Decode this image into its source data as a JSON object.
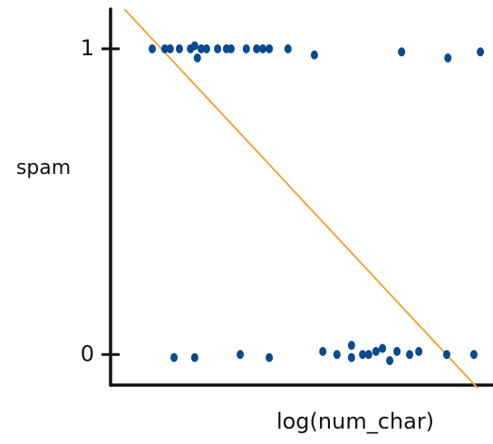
{
  "chart_data": {
    "type": "scatter",
    "x_label": "log(num_char)",
    "y_label": "spam",
    "xlim": [
      0,
      10
    ],
    "ylim": [
      -0.1,
      1.13
    ],
    "yticks": [
      0,
      1
    ],
    "point_color": "#0a4a8f",
    "line_color": "#f2a33a",
    "x": [
      1.09,
      1.42,
      1.56,
      1.8,
      2.09,
      2.2,
      2.27,
      2.37,
      2.51,
      2.8,
      3.03,
      3.15,
      3.55,
      3.82,
      3.98,
      4.15,
      4.64,
      5.33,
      7.61,
      8.82,
      9.67,
      1.66,
      2.2,
      3.39,
      4.15,
      5.55,
      5.92,
      6.3,
      6.3,
      6.59,
      6.75,
      6.94,
      7.11,
      7.3,
      7.49,
      7.82,
      8.06,
      8.79,
      9.5
    ],
    "y": [
      1,
      1,
      1,
      1,
      1,
      1.01,
      0.97,
      1,
      1,
      1,
      1,
      1,
      1,
      1,
      1,
      1,
      1,
      0.98,
      0.99,
      0.97,
      0.99,
      -0.01,
      -0.01,
      0,
      -0.01,
      0.01,
      0,
      0.03,
      -0.01,
      0,
      0,
      0.01,
      0.02,
      -0.02,
      0.01,
      0,
      0.01,
      0,
      0
    ],
    "fit_line": {
      "x": [
        0.36,
        9.6
      ],
      "y": [
        1.13,
        -0.11
      ]
    }
  }
}
